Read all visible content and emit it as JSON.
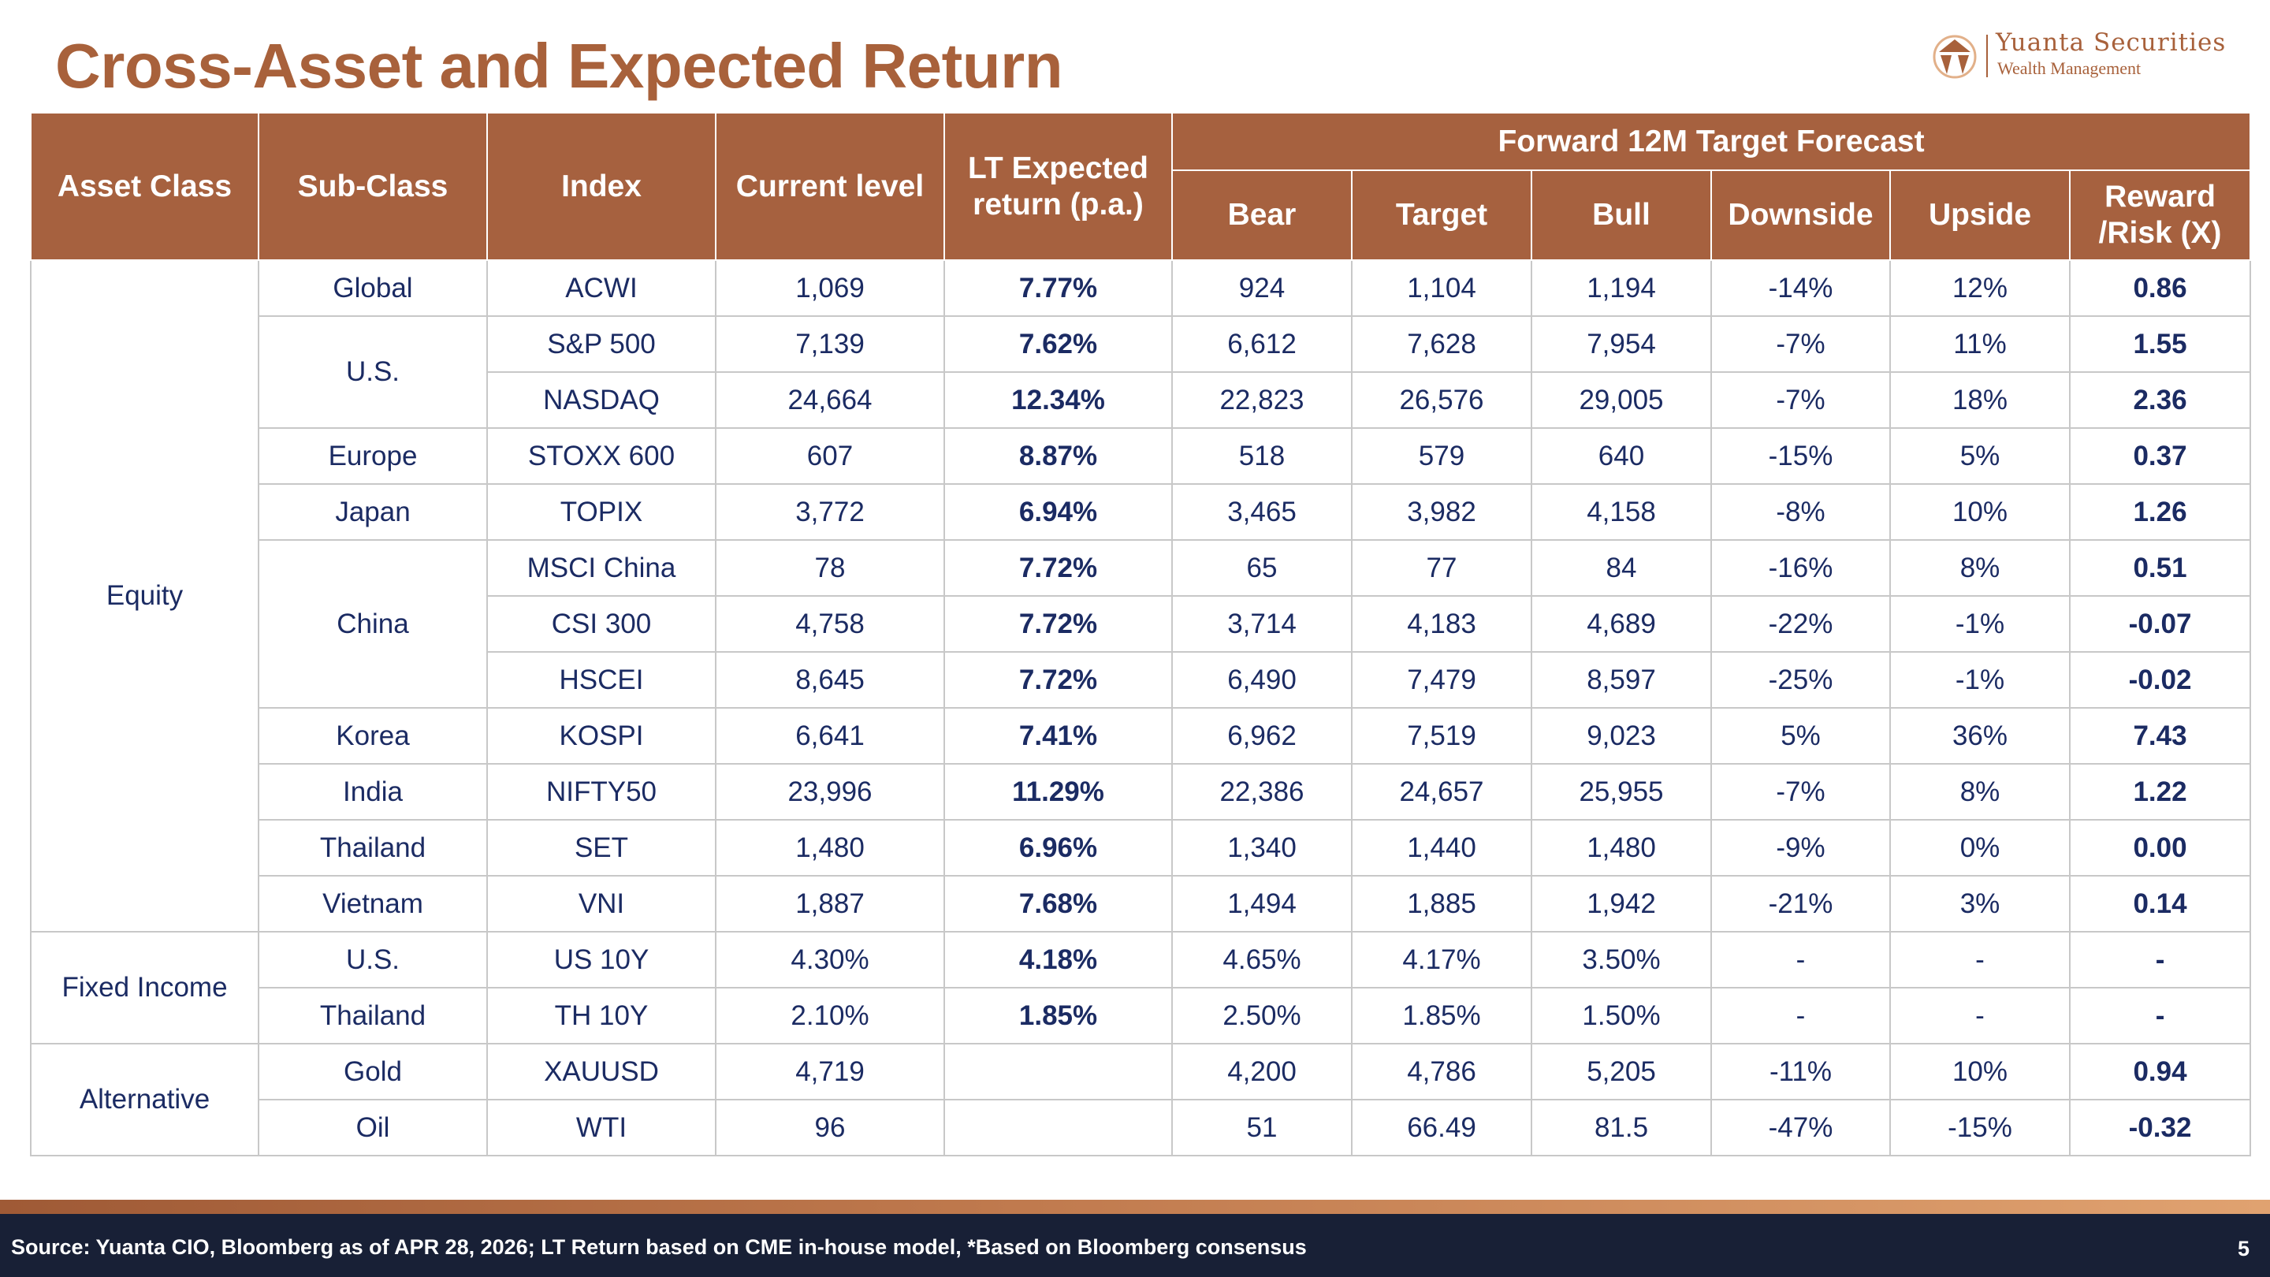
{
  "title": "Cross-Asset and Expected Return",
  "logo": {
    "name": "Yuanta Securities",
    "sub": "Wealth Management"
  },
  "headers": {
    "asset_class": "Asset Class",
    "sub_class": "Sub-Class",
    "index": "Index",
    "current_level": "Current level",
    "lt_expected": "LT Expected return (p.a.)",
    "forward": "Forward 12M Target Forecast",
    "bear": "Bear",
    "target": "Target",
    "bull": "Bull",
    "downside": "Downside",
    "upside": "Upside",
    "reward_risk": "Reward /Risk (X)"
  },
  "groups": [
    {
      "asset_class": "Equity",
      "subclasses": [
        {
          "name": "Global",
          "rows": [
            {
              "index": "ACWI",
              "current": "1,069",
              "lt": "7.77%",
              "bear": "924",
              "target": "1,104",
              "bull": "1,194",
              "downside": "-14%",
              "upside": "12%",
              "rr": "0.86"
            }
          ]
        },
        {
          "name": "U.S.",
          "rows": [
            {
              "index": "S&P 500",
              "current": "7,139",
              "lt": "7.62%",
              "bear": "6,612",
              "target": "7,628",
              "bull": "7,954",
              "downside": "-7%",
              "upside": "11%",
              "rr": "1.55"
            },
            {
              "index": "NASDAQ",
              "current": "24,664",
              "lt": "12.34%",
              "bear": "22,823",
              "target": "26,576",
              "bull": "29,005",
              "downside": "-7%",
              "upside": "18%",
              "rr": "2.36"
            }
          ]
        },
        {
          "name": "Europe",
          "rows": [
            {
              "index": "STOXX 600",
              "current": "607",
              "lt": "8.87%",
              "bear": "518",
              "target": "579",
              "bull": "640",
              "downside": "-15%",
              "upside": "5%",
              "rr": "0.37"
            }
          ]
        },
        {
          "name": "Japan",
          "rows": [
            {
              "index": "TOPIX",
              "current": "3,772",
              "lt": "6.94%",
              "bear": "3,465",
              "target": "3,982",
              "bull": "4,158",
              "downside": "-8%",
              "upside": "10%",
              "rr": "1.26"
            }
          ]
        },
        {
          "name": "China",
          "rows": [
            {
              "index": "MSCI China",
              "current": "78",
              "lt": "7.72%",
              "bear": "65",
              "target": "77",
              "bull": "84",
              "downside": "-16%",
              "upside": "8%",
              "rr": "0.51"
            },
            {
              "index": "CSI 300",
              "current": "4,758",
              "lt": "7.72%",
              "bear": "3,714",
              "target": "4,183",
              "bull": "4,689",
              "downside": "-22%",
              "upside": "-1%",
              "rr": "-0.07"
            },
            {
              "index": "HSCEI",
              "current": "8,645",
              "lt": "7.72%",
              "bear": "6,490",
              "target": "7,479",
              "bull": "8,597",
              "downside": "-25%",
              "upside": "-1%",
              "rr": "-0.02"
            }
          ]
        },
        {
          "name": "Korea",
          "rows": [
            {
              "index": "KOSPI",
              "current": "6,641",
              "lt": "7.41%",
              "bear": "6,962",
              "target": "7,519",
              "bull": "9,023",
              "downside": "5%",
              "upside": "36%",
              "rr": "7.43"
            }
          ]
        },
        {
          "name": "India",
          "rows": [
            {
              "index": "NIFTY50",
              "current": "23,996",
              "lt": "11.29%",
              "bear": "22,386",
              "target": "24,657",
              "bull": "25,955",
              "downside": "-7%",
              "upside": "8%",
              "rr": "1.22"
            }
          ]
        },
        {
          "name": "Thailand",
          "rows": [
            {
              "index": "SET",
              "current": "1,480",
              "lt": "6.96%",
              "bear": "1,340",
              "target": "1,440",
              "bull": "1,480",
              "downside": "-9%",
              "upside": "0%",
              "rr": "0.00"
            }
          ]
        },
        {
          "name": "Vietnam",
          "rows": [
            {
              "index": "VNI",
              "current": "1,887",
              "lt": "7.68%",
              "bear": "1,494",
              "target": "1,885",
              "bull": "1,942",
              "downside": "-21%",
              "upside": "3%",
              "rr": "0.14"
            }
          ]
        }
      ]
    },
    {
      "asset_class": "Fixed Income",
      "subclasses": [
        {
          "name": "U.S.",
          "rows": [
            {
              "index": "US 10Y",
              "current": "4.30%",
              "lt": "4.18%",
              "bear": "4.65%",
              "target": "4.17%",
              "bull": "3.50%",
              "downside": "-",
              "upside": "-",
              "rr": "-"
            }
          ]
        },
        {
          "name": "Thailand",
          "rows": [
            {
              "index": "TH 10Y",
              "current": "2.10%",
              "lt": "1.85%",
              "bear": "2.50%",
              "target": "1.85%",
              "bull": "1.50%",
              "downside": "-",
              "upside": "-",
              "rr": "-"
            }
          ]
        }
      ]
    },
    {
      "asset_class": "Alternative",
      "subclasses": [
        {
          "name": "Gold",
          "rows": [
            {
              "index": "XAUUSD",
              "current": "4,719",
              "lt": "",
              "bear": "4,200",
              "target": "4,786",
              "bull": "5,205",
              "downside": "-11%",
              "upside": "10%",
              "rr": "0.94"
            }
          ]
        },
        {
          "name": "Oil",
          "rows": [
            {
              "index": "WTI",
              "current": "96",
              "lt": "",
              "bear": "51",
              "target": "66.49",
              "bull": "81.5",
              "downside": "-47%",
              "upside": "-15%",
              "rr": "-0.32"
            }
          ]
        }
      ]
    }
  ],
  "footer": {
    "source": "Source: Yuanta CIO, Bloomberg as of APR 28, 2026; LT Return based on CME in-house model, *Based on Bloomberg consensus",
    "page": "5"
  },
  "colors": {
    "brand": "#a6613f",
    "footer_bg": "#182036",
    "value_blue": "#1b2b63"
  }
}
